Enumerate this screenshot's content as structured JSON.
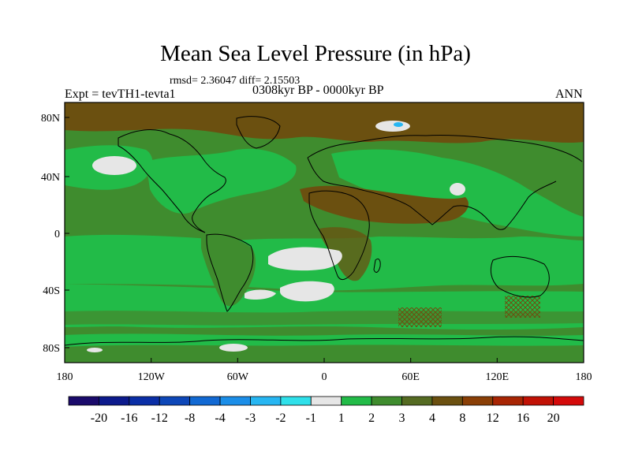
{
  "title": "Mean Sea Level Pressure (in hPa)",
  "stats": "rmsd= 2.36047 diff= 2.15503",
  "experiment": "Expt = tevTH1-tevta1",
  "period": "0308kyr BP - 0000kyr BP",
  "season": "ANN",
  "lat_ticks": [
    "80N",
    "40N",
    "0",
    "40S",
    "80S"
  ],
  "lon_ticks": [
    "180",
    "120W",
    "60W",
    "0",
    "60E",
    "120E",
    "180"
  ],
  "colorbar": {
    "labels": [
      "-20",
      "-16",
      "-12",
      "-8",
      "-4",
      "-3",
      "-2",
      "-1",
      "1",
      "2",
      "3",
      "4",
      "8",
      "12",
      "16",
      "20"
    ],
    "colors": [
      "#1a0a6b",
      "#0c1a8c",
      "#0a2ea6",
      "#0d47b8",
      "#1269d3",
      "#1b8ee8",
      "#27b6f2",
      "#2fe0ea",
      "#e6e6e6",
      "#22bb48",
      "#3f8c2e",
      "#556b22",
      "#6b5010",
      "#8a3f06",
      "#a82503",
      "#c11205",
      "#d40a0a"
    ]
  },
  "colors": {
    "land_high": "#556b22",
    "ocean_low": "#22bb48",
    "mid": "#3f8c2e",
    "brown": "#6b5010",
    "near_zero": "#e6e6e6"
  }
}
